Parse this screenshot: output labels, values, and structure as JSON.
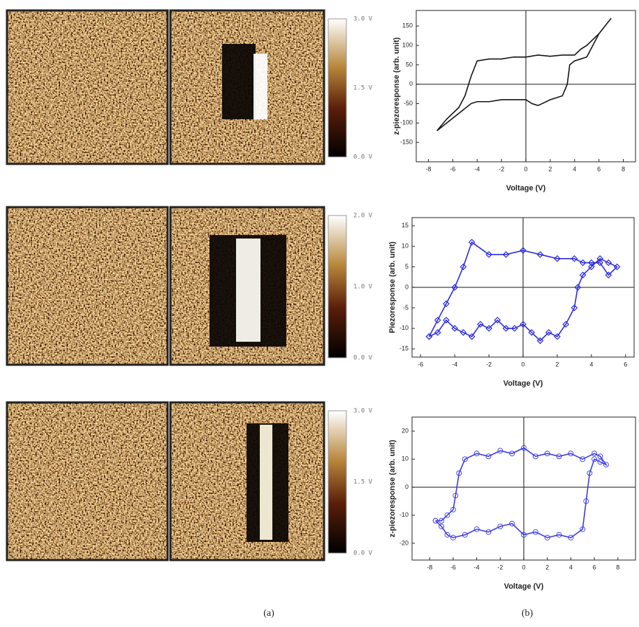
{
  "panels": [
    {
      "colorbar_labels": [
        "3.0 V",
        "1.5 V",
        "0.0 V"
      ]
    },
    {
      "colorbar_labels": [
        "2.0 V",
        "1.0 V",
        "0.0 V"
      ]
    },
    {
      "colorbar_labels": [
        "3.0 V",
        "1.5 V",
        "0.0 V"
      ]
    }
  ],
  "captions": [
    "(a)",
    "(b)"
  ],
  "chart_data": [
    {
      "type": "line",
      "x_label": "Voltage (V)",
      "y_label": "z-piezoresponse (arb. unit)",
      "xlim": [
        -9,
        9
      ],
      "ylim": [
        -200,
        190
      ],
      "xticks": [
        -8,
        -6,
        -4,
        -2,
        0,
        2,
        4,
        6,
        8
      ],
      "yticks": [
        -150,
        -100,
        -50,
        0,
        50,
        100,
        150
      ],
      "zero_lines": true,
      "marker": null,
      "x": [
        -7.3,
        -6.5,
        -5.5,
        -4.5,
        -4,
        -3,
        -2,
        -1,
        0,
        0.5,
        1,
        2,
        3,
        3.4,
        3.6,
        4,
        4.5,
        5,
        6,
        7,
        6,
        5,
        4.5,
        4,
        3,
        2,
        1,
        0,
        -1,
        -2,
        -3,
        -4,
        -4.5,
        -5,
        -5.5,
        -6.5,
        -7.3
      ],
      "series": [
        {
          "color": "#111111",
          "values": [
            -120,
            -100,
            -75,
            -50,
            -45,
            -45,
            -40,
            -40,
            -40,
            -50,
            -55,
            -40,
            -30,
            0,
            50,
            60,
            65,
            70,
            130,
            170,
            130,
            100,
            90,
            75,
            75,
            72,
            75,
            70,
            70,
            65,
            65,
            60,
            20,
            -30,
            -60,
            -90,
            -120
          ]
        }
      ]
    },
    {
      "type": "line",
      "x_label": "Voltage (V)",
      "y_label": "Piezoresponse (arb. unit)",
      "xlim": [
        -6.5,
        6.5
      ],
      "ylim": [
        -17,
        17
      ],
      "xticks": [
        -6,
        -4,
        -2,
        0,
        2,
        4,
        6
      ],
      "yticks": [
        -15,
        -10,
        -5,
        0,
        5,
        10,
        15
      ],
      "zero_lines": true,
      "marker": "diamond",
      "x": [
        -5.5,
        -5,
        -4.5,
        -4,
        -3.5,
        -3,
        -2.5,
        -2,
        -1.5,
        -1,
        -0.5,
        0,
        0.5,
        1,
        1.5,
        2,
        2.5,
        3,
        3.2,
        3.5,
        4,
        4.5,
        5,
        5.5,
        5,
        4.5,
        4,
        3.5,
        3,
        2,
        1,
        0,
        -1,
        -2,
        -3,
        -3.5,
        -4,
        -4.5,
        -5,
        -5.5
      ],
      "series": [
        {
          "color": "#2a2ae0",
          "values": [
            -12,
            -11,
            -8,
            -10,
            -11,
            -12,
            -9,
            -10,
            -8,
            -10,
            -10,
            -9,
            -11,
            -13,
            -11,
            -12,
            -9,
            -5,
            0,
            3,
            5,
            7,
            6,
            5,
            3,
            6,
            6,
            6,
            7,
            7,
            8,
            9,
            8,
            8,
            11,
            5,
            0,
            -4,
            -8,
            -12
          ]
        }
      ]
    },
    {
      "type": "line",
      "x_label": "Voltage (V)",
      "y_label": "z-piezoresponse (arb. unit)",
      "xlim": [
        -9.5,
        9.5
      ],
      "ylim": [
        -26,
        25
      ],
      "xticks": [
        -8,
        -6,
        -4,
        -2,
        0,
        2,
        4,
        6,
        8
      ],
      "yticks": [
        -20,
        -10,
        0,
        10,
        20
      ],
      "zero_lines": true,
      "marker": "circle",
      "x": [
        -7.5,
        -7,
        -6.5,
        -6,
        -5,
        -4,
        -3,
        -2,
        -1,
        0,
        1,
        2,
        3,
        4,
        5,
        5.3,
        5.6,
        6,
        6.5,
        7,
        6.5,
        6,
        5,
        4,
        3,
        2,
        1,
        0,
        -1,
        -2,
        -3,
        -4,
        -5,
        -5.5,
        -5.8,
        -6,
        -6.5,
        -7,
        -7.5
      ],
      "series": [
        {
          "color": "#3a3ae8",
          "values": [
            -12,
            -14,
            -17,
            -18,
            -17,
            -15,
            -16,
            -14,
            -13,
            -17,
            -16,
            -18,
            -17,
            -18,
            -15,
            -5,
            5,
            10,
            9,
            8,
            11,
            12,
            10,
            12,
            11,
            12,
            11,
            14,
            12,
            13,
            11,
            12,
            10,
            5,
            -3,
            -8,
            -10,
            -12,
            -12
          ]
        }
      ]
    }
  ]
}
